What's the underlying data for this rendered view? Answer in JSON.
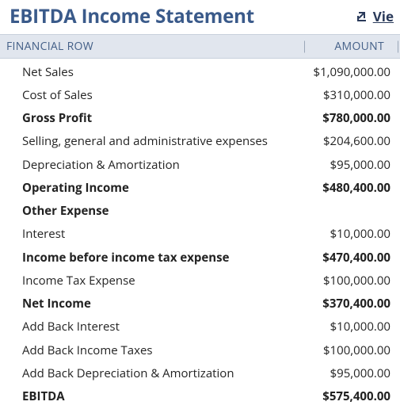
{
  "header": {
    "title": "EBITDA Income Statement",
    "view_label": "Vie"
  },
  "table": {
    "columns": {
      "label": "FINANCIAL ROW",
      "amount": "AMOUNT"
    },
    "rows": [
      {
        "label": "Net Sales",
        "amount": "$1,090,000.00",
        "bold": false
      },
      {
        "label": "Cost of Sales",
        "amount": "$310,000.00",
        "bold": false
      },
      {
        "label": "Gross Profit",
        "amount": "$780,000.00",
        "bold": true
      },
      {
        "label": "Selling, general and administrative expenses",
        "amount": "$204,600.00",
        "bold": false
      },
      {
        "label": "Depreciation & Amortization",
        "amount": "$95,000.00",
        "bold": false
      },
      {
        "label": "Operating Income",
        "amount": "$480,400.00",
        "bold": true
      },
      {
        "label": "Other Expense",
        "amount": "",
        "bold": true
      },
      {
        "label": "Interest",
        "amount": "$10,000.00",
        "bold": false
      },
      {
        "label": "Income before income tax expense",
        "amount": "$470,400.00",
        "bold": true
      },
      {
        "label": "Income Tax Expense",
        "amount": "$100,000.00",
        "bold": false
      },
      {
        "label": "Net Income",
        "amount": "$370,400.00",
        "bold": true
      },
      {
        "label": "Add Back Interest",
        "amount": "$10,000.00",
        "bold": false
      },
      {
        "label": "Add Back Income Taxes",
        "amount": "$100,000.00",
        "bold": false
      },
      {
        "label": "Add Back Depreciation & Amortization",
        "amount": "$95,000.00",
        "bold": false
      },
      {
        "label": "EBITDA",
        "amount": "$575,400.00",
        "bold": true
      }
    ]
  },
  "style": {
    "title_color": "#3a5a8a",
    "header_bg": "#e1e6ee",
    "header_text": "#446088",
    "text_color": "#222222",
    "link_color": "#2a3a5a"
  }
}
